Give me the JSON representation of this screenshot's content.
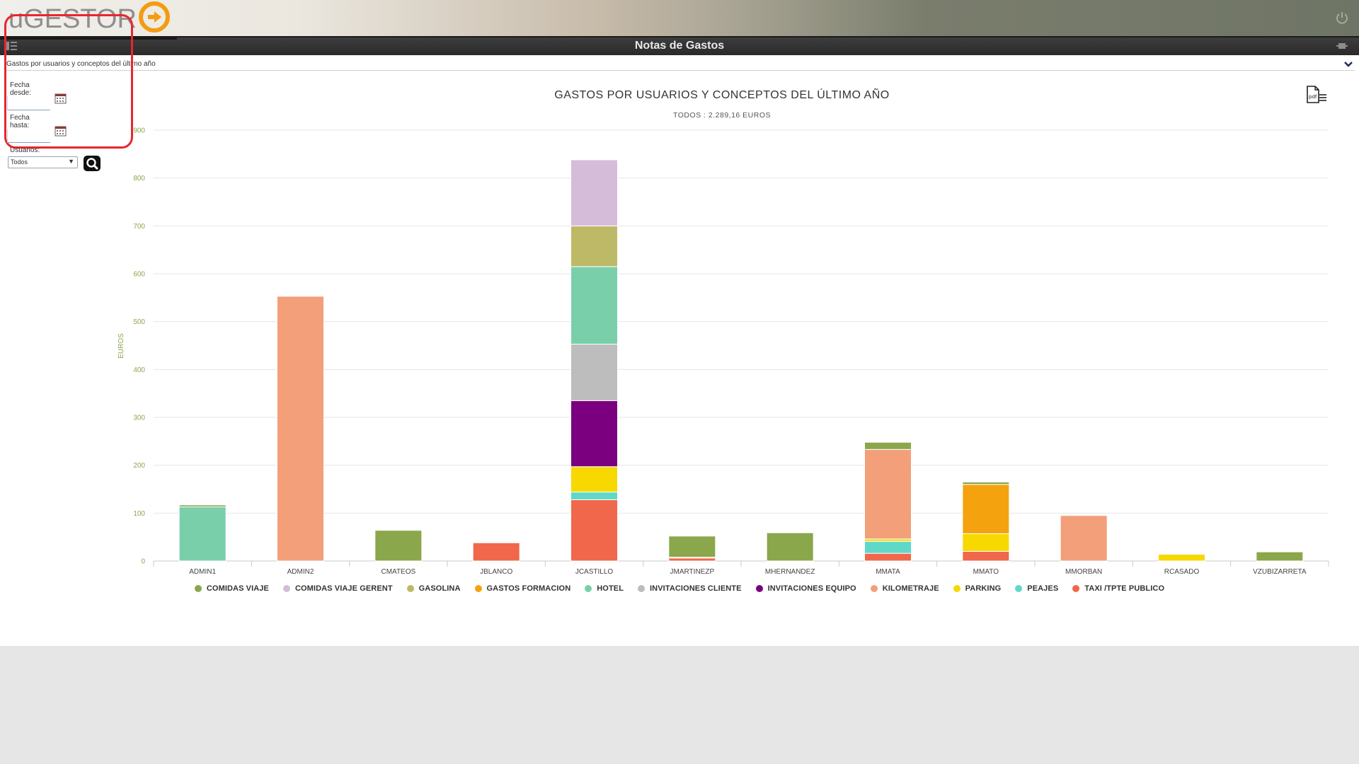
{
  "header": {
    "logo_text": "uGESTOR",
    "page_title": "Notas de Gastos",
    "colors": {
      "logo_orange": "#f39c12",
      "logo_gray": "#8e8e8e"
    }
  },
  "report_selector": {
    "selected": "Gastos por usuarios y conceptos del último año"
  },
  "filters": {
    "date_from_label": "Fecha desde:",
    "date_from_value": "",
    "date_to_label": "Fecha hasta:",
    "date_to_value": "",
    "users_label": "Usuarios:",
    "users_value": "Todos"
  },
  "chart_data": {
    "type": "bar",
    "stacked": true,
    "title": "GASTOS POR USUARIOS Y CONCEPTOS DEL ÚLTIMO AÑO",
    "subtitle": "TODOS : 2.289,16 EUROS",
    "ylabel": "EUROS",
    "ylim": [
      0,
      900
    ],
    "yticks": [
      0,
      100,
      200,
      300,
      400,
      500,
      600,
      700,
      800,
      900
    ],
    "ytick_labels": [
      "0",
      "100",
      "200",
      "300",
      "400",
      "500",
      "600",
      "700",
      "800",
      "900"
    ],
    "grid": true,
    "legend_position": "bottom",
    "categories": [
      "ADMIN1",
      "ADMIN2",
      "CMATEOS",
      "JBLANCO",
      "JCASTILLO",
      "JMARTINEZP",
      "MHERNANDEZ",
      "MMATA",
      "MMATO",
      "MMORBAN",
      "RCASADO",
      "VZUBIZARRETA"
    ],
    "series": [
      {
        "name": "TAXI /TPTE PUBLICO",
        "color": "#f0674b",
        "values": [
          0,
          0,
          0,
          38,
          128,
          6,
          0,
          16,
          20,
          0,
          0,
          0
        ]
      },
      {
        "name": "PEAJES",
        "color": "#5fd8c8",
        "values": [
          0,
          0,
          0,
          0,
          16,
          0,
          0,
          25,
          0,
          0,
          0,
          0
        ]
      },
      {
        "name": "PARKING",
        "color": "#f7d800",
        "values": [
          0,
          0,
          0,
          0,
          53,
          0,
          0,
          5,
          37,
          0,
          14,
          0
        ]
      },
      {
        "name": "KILOMETRAJE",
        "color": "#f29f7a",
        "values": [
          0,
          553,
          0,
          0,
          0,
          2,
          0,
          187,
          0,
          95,
          0,
          0
        ]
      },
      {
        "name": "INVITACIONES EQUIPO",
        "color": "#7a007f",
        "values": [
          0,
          0,
          0,
          0,
          138,
          0,
          0,
          0,
          0,
          0,
          0,
          0
        ]
      },
      {
        "name": "INVITACIONES CLIENTE",
        "color": "#bdbdbd",
        "values": [
          0,
          0,
          0,
          0,
          118,
          0,
          0,
          0,
          0,
          0,
          0,
          0
        ]
      },
      {
        "name": "HOTEL",
        "color": "#79cfaa",
        "values": [
          113,
          0,
          0,
          0,
          162,
          0,
          0,
          0,
          0,
          0,
          0,
          0
        ]
      },
      {
        "name": "GASTOS FORMACION",
        "color": "#f4a30e",
        "values": [
          0,
          0,
          0,
          0,
          0,
          0,
          0,
          0,
          103,
          0,
          0,
          0
        ]
      },
      {
        "name": "GASOLINA",
        "color": "#bdb967",
        "values": [
          0,
          0,
          0,
          0,
          85,
          0,
          0,
          0,
          0,
          0,
          0,
          0
        ]
      },
      {
        "name": "COMIDAS VIAJE GERENT",
        "color": "#d5bcd9",
        "values": [
          0,
          0,
          0,
          0,
          138,
          0,
          0,
          0,
          0,
          0,
          0,
          0
        ]
      },
      {
        "name": "COMIDAS VIAJE",
        "color": "#8ba74b",
        "values": [
          4,
          0,
          64,
          0,
          0,
          44,
          59,
          15,
          5,
          0,
          0,
          19
        ]
      }
    ],
    "legend_order": [
      "COMIDAS VIAJE",
      "COMIDAS VIAJE GERENT",
      "GASOLINA",
      "GASTOS FORMACION",
      "HOTEL",
      "INVITACIONES CLIENTE",
      "INVITACIONES EQUIPO",
      "KILOMETRAJE",
      "PARKING",
      "PEAJES",
      "TAXI /TPTE PUBLICO"
    ]
  },
  "icons": {
    "logo": "ugestor-logo-icon",
    "power": "power-icon",
    "menu": "menu-icon",
    "plugin": "plugin-icon",
    "calendar": "calendar-icon",
    "search": "search-icon",
    "pdf": "pdf-icon",
    "chevron": "chevron-down-icon"
  }
}
